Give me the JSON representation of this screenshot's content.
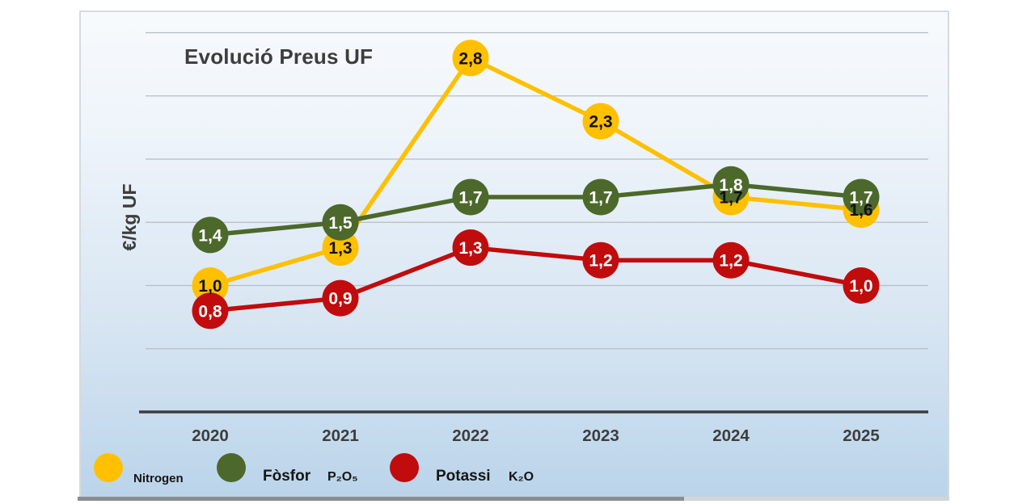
{
  "chart_data": {
    "type": "line",
    "title": "Evolució Preus UF",
    "ylabel": "€/kg UF",
    "xlabel": "",
    "categories": [
      "2020",
      "2021",
      "2022",
      "2023",
      "2024",
      "2025"
    ],
    "series": [
      {
        "name": "Nitrogen",
        "formula": "",
        "color": "#FFC000",
        "label_color": "#111111",
        "values": [
          1.0,
          1.3,
          2.8,
          2.3,
          1.7,
          1.6
        ],
        "labels": [
          "1,0",
          "1,3",
          "2,8",
          "2,3",
          "1,7",
          "1,6"
        ]
      },
      {
        "name": "Fòsfor",
        "formula": "P₂O₅",
        "color": "#4C682B",
        "label_color": "#FFFFFF",
        "values": [
          1.4,
          1.5,
          1.7,
          1.7,
          1.8,
          1.7
        ],
        "labels": [
          "1,4",
          "1,5",
          "1,7",
          "1,7",
          "1,8",
          "1,7"
        ]
      },
      {
        "name": "Potassi",
        "formula": "K₂O",
        "color": "#C00C0C",
        "label_color": "#FFFFFF",
        "values": [
          0.8,
          0.9,
          1.3,
          1.2,
          1.2,
          1.0
        ],
        "labels": [
          "0,8",
          "0,9",
          "1,3",
          "1,2",
          "1,2",
          "1,0"
        ]
      }
    ],
    "ylim": [
      0,
      3
    ],
    "grid_step": 0.5,
    "grid": true,
    "y_tick_labels_shown": false,
    "legend_position": "bottom",
    "decimal_separator": ","
  },
  "style": {
    "axis_color": "#3d3d3d",
    "grid_color": "#b5bcc4",
    "tick_label_color": "#3d3d3d"
  }
}
